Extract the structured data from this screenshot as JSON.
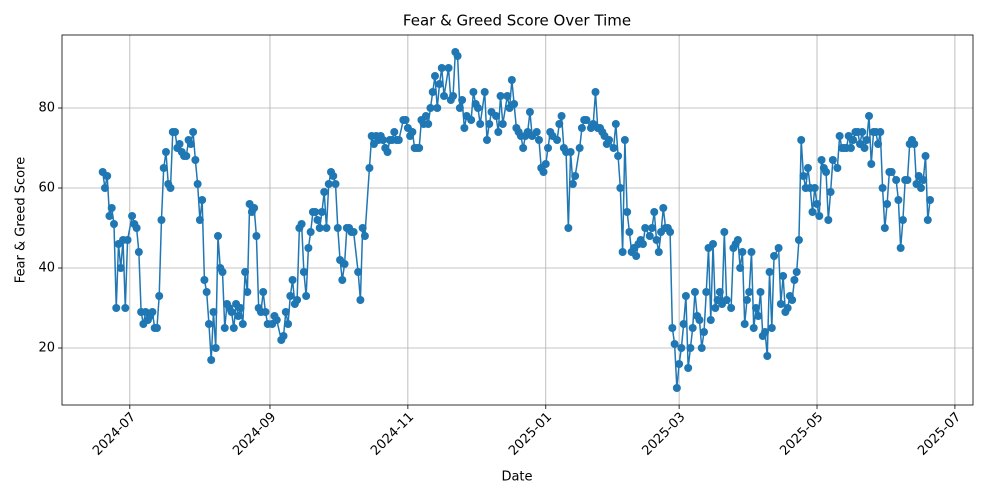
{
  "chart_data": {
    "type": "line",
    "title": "Fear & Greed Score Over Time",
    "x_label": "Date",
    "y_label": "Fear & Greed Score",
    "color": "#1f77b4",
    "grid": true,
    "markers": true,
    "xlim": [
      19875,
      20278
    ],
    "ylim": [
      5.75,
      98.25
    ],
    "xticks": [
      {
        "value": 19905,
        "label": "2024-07"
      },
      {
        "value": 19967,
        "label": "2024-09"
      },
      {
        "value": 20028,
        "label": "2024-11"
      },
      {
        "value": 20089,
        "label": "2025-01"
      },
      {
        "value": 20148,
        "label": "2025-03"
      },
      {
        "value": 20209,
        "label": "2025-05"
      },
      {
        "value": 20270,
        "label": "2025-07"
      }
    ],
    "yticks": [
      20,
      40,
      60,
      80
    ],
    "x": [
      19893,
      19894,
      19895,
      19896,
      19897,
      19898,
      19899,
      19900,
      19901,
      19902,
      19903,
      19904,
      19906,
      19907,
      19908,
      19909,
      19910,
      19911,
      19912,
      19913,
      19914,
      19915,
      19916,
      19917,
      19918,
      19919,
      19920,
      19921,
      19922,
      19923,
      19924,
      19925,
      19926,
      19927,
      19928,
      19929,
      19930,
      19931,
      19932,
      19933,
      19934,
      19935,
      19936,
      19937,
      19938,
      19939,
      19940,
      19941,
      19942,
      19943,
      19944,
      19945,
      19946,
      19947,
      19948,
      19949,
      19950,
      19951,
      19952,
      19953,
      19954,
      19955,
      19956,
      19957,
      19958,
      19959,
      19960,
      19961,
      19962,
      19963,
      19964,
      19965,
      19966,
      19968,
      19969,
      19970,
      19972,
      19973,
      19974,
      19975,
      19976,
      19977,
      19978,
      19979,
      19980,
      19981,
      19982,
      19983,
      19984,
      19985,
      19986,
      19987,
      19988,
      19989,
      19990,
      19991,
      19992,
      19993,
      19994,
      19995,
      19996,
      19997,
      19998,
      19999,
      20000,
      20001,
      20002,
      20003,
      20004,
      20006,
      20007,
      20008,
      20009,
      20011,
      20012,
      20013,
      20014,
      20015,
      20016,
      20017,
      20018,
      20019,
      20020,
      20021,
      20022,
      20023,
      20024,
      20026,
      20027,
      20028,
      20029,
      20030,
      20031,
      20032,
      20033,
      20034,
      20035,
      20036,
      20037,
      20038,
      20039,
      20040,
      20041,
      20042,
      20043,
      20044,
      20046,
      20047,
      20048,
      20049,
      20050,
      20051,
      20052,
      20053,
      20054,
      20056,
      20057,
      20058,
      20059,
      20060,
      20062,
      20063,
      20064,
      20065,
      20067,
      20068,
      20069,
      20070,
      20072,
      20073,
      20074,
      20075,
      20076,
      20077,
      20078,
      20079,
      20080,
      20081,
      20082,
      20083,
      20085,
      20086,
      20087,
      20088,
      20089,
      20090,
      20091,
      20092,
      20094,
      20095,
      20096,
      20097,
      20098,
      20099,
      20100,
      20101,
      20102,
      20104,
      20105,
      20106,
      20107,
      20109,
      20110,
      20111,
      20112,
      20113,
      20114,
      20115,
      20116,
      20117,
      20119,
      20120,
      20121,
      20122,
      20123,
      20124,
      20125,
      20126,
      20127,
      20128,
      20129,
      20130,
      20131,
      20132,
      20133,
      20135,
      20136,
      20137,
      20138,
      20139,
      20140,
      20141,
      20142,
      20143,
      20144,
      20145,
      20146,
      20147,
      20148,
      20149,
      20150,
      20151,
      20152,
      20153,
      20154,
      20155,
      20156,
      20157,
      20158,
      20159,
      20160,
      20161,
      20162,
      20163,
      20164,
      20165,
      20166,
      20167,
      20168,
      20169,
      20171,
      20172,
      20173,
      20174,
      20175,
      20176,
      20177,
      20178,
      20179,
      20180,
      20181,
      20182,
      20183,
      20184,
      20185,
      20186,
      20187,
      20188,
      20189,
      20190,
      20192,
      20193,
      20194,
      20195,
      20196,
      20197,
      20198,
      20199,
      20200,
      20201,
      20202,
      20203,
      20204,
      20205,
      20206,
      20207,
      20208,
      20209,
      20210,
      20211,
      20212,
      20213,
      20214,
      20215,
      20216,
      20218,
      20219,
      20220,
      20221,
      20222,
      20223,
      20224,
      20225,
      20226,
      20227,
      20228,
      20229,
      20230,
      20231,
      20232,
      20233,
      20234,
      20235,
      20236,
      20237,
      20238,
      20239,
      20240,
      20241,
      20242,
      20244,
      20245,
      20246,
      20247,
      20248,
      20249,
      20250,
      20251,
      20252,
      20253,
      20254,
      20255,
      20256,
      20257,
      20258,
      20259
    ],
    "values": [
      64,
      60,
      63,
      53,
      55,
      51,
      30,
      46,
      40,
      47,
      30,
      47,
      53,
      51,
      50,
      44,
      29,
      26,
      29,
      27,
      28,
      29,
      25,
      25,
      33,
      52,
      65,
      69,
      61,
      60,
      74,
      74,
      70,
      71,
      69,
      68,
      68,
      72,
      71,
      74,
      67,
      61,
      52,
      57,
      37,
      34,
      26,
      17,
      29,
      20,
      48,
      40,
      39,
      25,
      31,
      30,
      29,
      25,
      31,
      28,
      30,
      26,
      39,
      34,
      56,
      54,
      55,
      48,
      30,
      29,
      34,
      29,
      26,
      26,
      28,
      27,
      22,
      23,
      29,
      26,
      33,
      37,
      31,
      32,
      50,
      51,
      39,
      33,
      45,
      49,
      54,
      54,
      52,
      50,
      54,
      59,
      50,
      61,
      64,
      63,
      61,
      50,
      42,
      37,
      41,
      50,
      50,
      49,
      49,
      39,
      32,
      50,
      48,
      65,
      73,
      71,
      73,
      72,
      73,
      72,
      70,
      69,
      72,
      72,
      74,
      72,
      72,
      77,
      77,
      75,
      73,
      74,
      70,
      70,
      70,
      77,
      76,
      78,
      76,
      80,
      84,
      88,
      80,
      86,
      90,
      83,
      90,
      82,
      83,
      94,
      93,
      80,
      82,
      75,
      78,
      77,
      84,
      81,
      80,
      76,
      84,
      72,
      76,
      79,
      78,
      74,
      83,
      76,
      83,
      80,
      87,
      81,
      75,
      74,
      73,
      70,
      73,
      74,
      79,
      73,
      74,
      72,
      65,
      64,
      66,
      70,
      74,
      73,
      72,
      76,
      78,
      70,
      69,
      50,
      69,
      61,
      63,
      70,
      75,
      77,
      77,
      75,
      76,
      84,
      75,
      75,
      74,
      73,
      71,
      72,
      70,
      76,
      68,
      60,
      44,
      72,
      54,
      49,
      44,
      45,
      43,
      46,
      47,
      46,
      50,
      48,
      50,
      54,
      47,
      44,
      49,
      55,
      50,
      50,
      49,
      25,
      21,
      10,
      16,
      20,
      26,
      33,
      15,
      20,
      25,
      34,
      28,
      27,
      20,
      24,
      34,
      45,
      27,
      46,
      30,
      32,
      34,
      31,
      49,
      32,
      30,
      45,
      46,
      47,
      40,
      44,
      26,
      32,
      34,
      44,
      25,
      30,
      28,
      34,
      23,
      24,
      18,
      39,
      25,
      43,
      45,
      31,
      38,
      29,
      30,
      33,
      32,
      37,
      39,
      47,
      72,
      63,
      60,
      65,
      60,
      54,
      60,
      56,
      53,
      67,
      65,
      64,
      52,
      59,
      67,
      65,
      73,
      70,
      70,
      70,
      73,
      70,
      72,
      74,
      74,
      71,
      74,
      70,
      72,
      78,
      66,
      74,
      74,
      71,
      74,
      60,
      50,
      56,
      64,
      64,
      62,
      57,
      45,
      52,
      62,
      62,
      71,
      72,
      71,
      61,
      63,
      60,
      62,
      68,
      52,
      57
    ]
  }
}
